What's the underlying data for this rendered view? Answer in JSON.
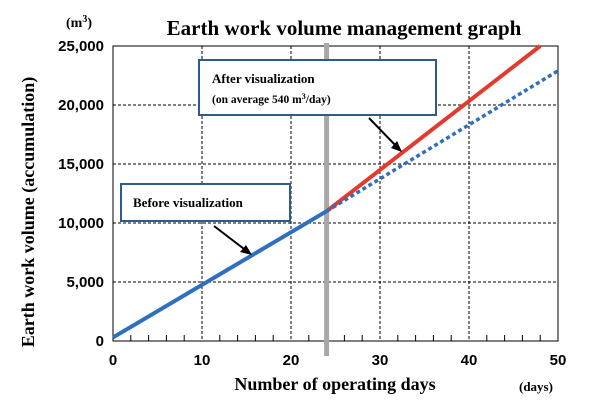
{
  "chart_data": {
    "type": "line",
    "title": "Earth work volume management graph",
    "xlabel": "Number of operating days",
    "ylabel": "Earth work volume (accumulation)",
    "x_unit": "(days)",
    "y_unit_base": "(m",
    "y_unit_sup": "3",
    "y_unit_close": ")",
    "xlim": [
      0,
      50
    ],
    "ylim": [
      0,
      25000
    ],
    "x_ticks": [
      0,
      10,
      20,
      30,
      40,
      50
    ],
    "y_ticks": [
      0,
      5000,
      10000,
      15000,
      20000,
      25000
    ],
    "y_tick_labels": [
      "0",
      "5,000",
      "10,000",
      "15,000",
      "20,000",
      "25,000"
    ],
    "grid": true,
    "vertical_marker_x": 24,
    "series": [
      {
        "style": "solid",
        "color": "#2e6fbe",
        "points": [
          [
            0,
            300
          ],
          [
            24,
            11000
          ]
        ]
      },
      {
        "style": "solid",
        "color": "#e23b2e",
        "points": [
          [
            24,
            11000
          ],
          [
            48,
            25000
          ]
        ]
      },
      {
        "style": "dotted",
        "color": "#2e6fbe",
        "points": [
          [
            24,
            11000
          ],
          [
            50,
            22900
          ]
        ]
      }
    ],
    "annotations": {
      "before": {
        "text": "Before visualization"
      },
      "after": {
        "line1": "After visualization",
        "line2_pre": "(on average 540 m",
        "line2_sup": "3",
        "line2_post": "/day)"
      }
    }
  }
}
